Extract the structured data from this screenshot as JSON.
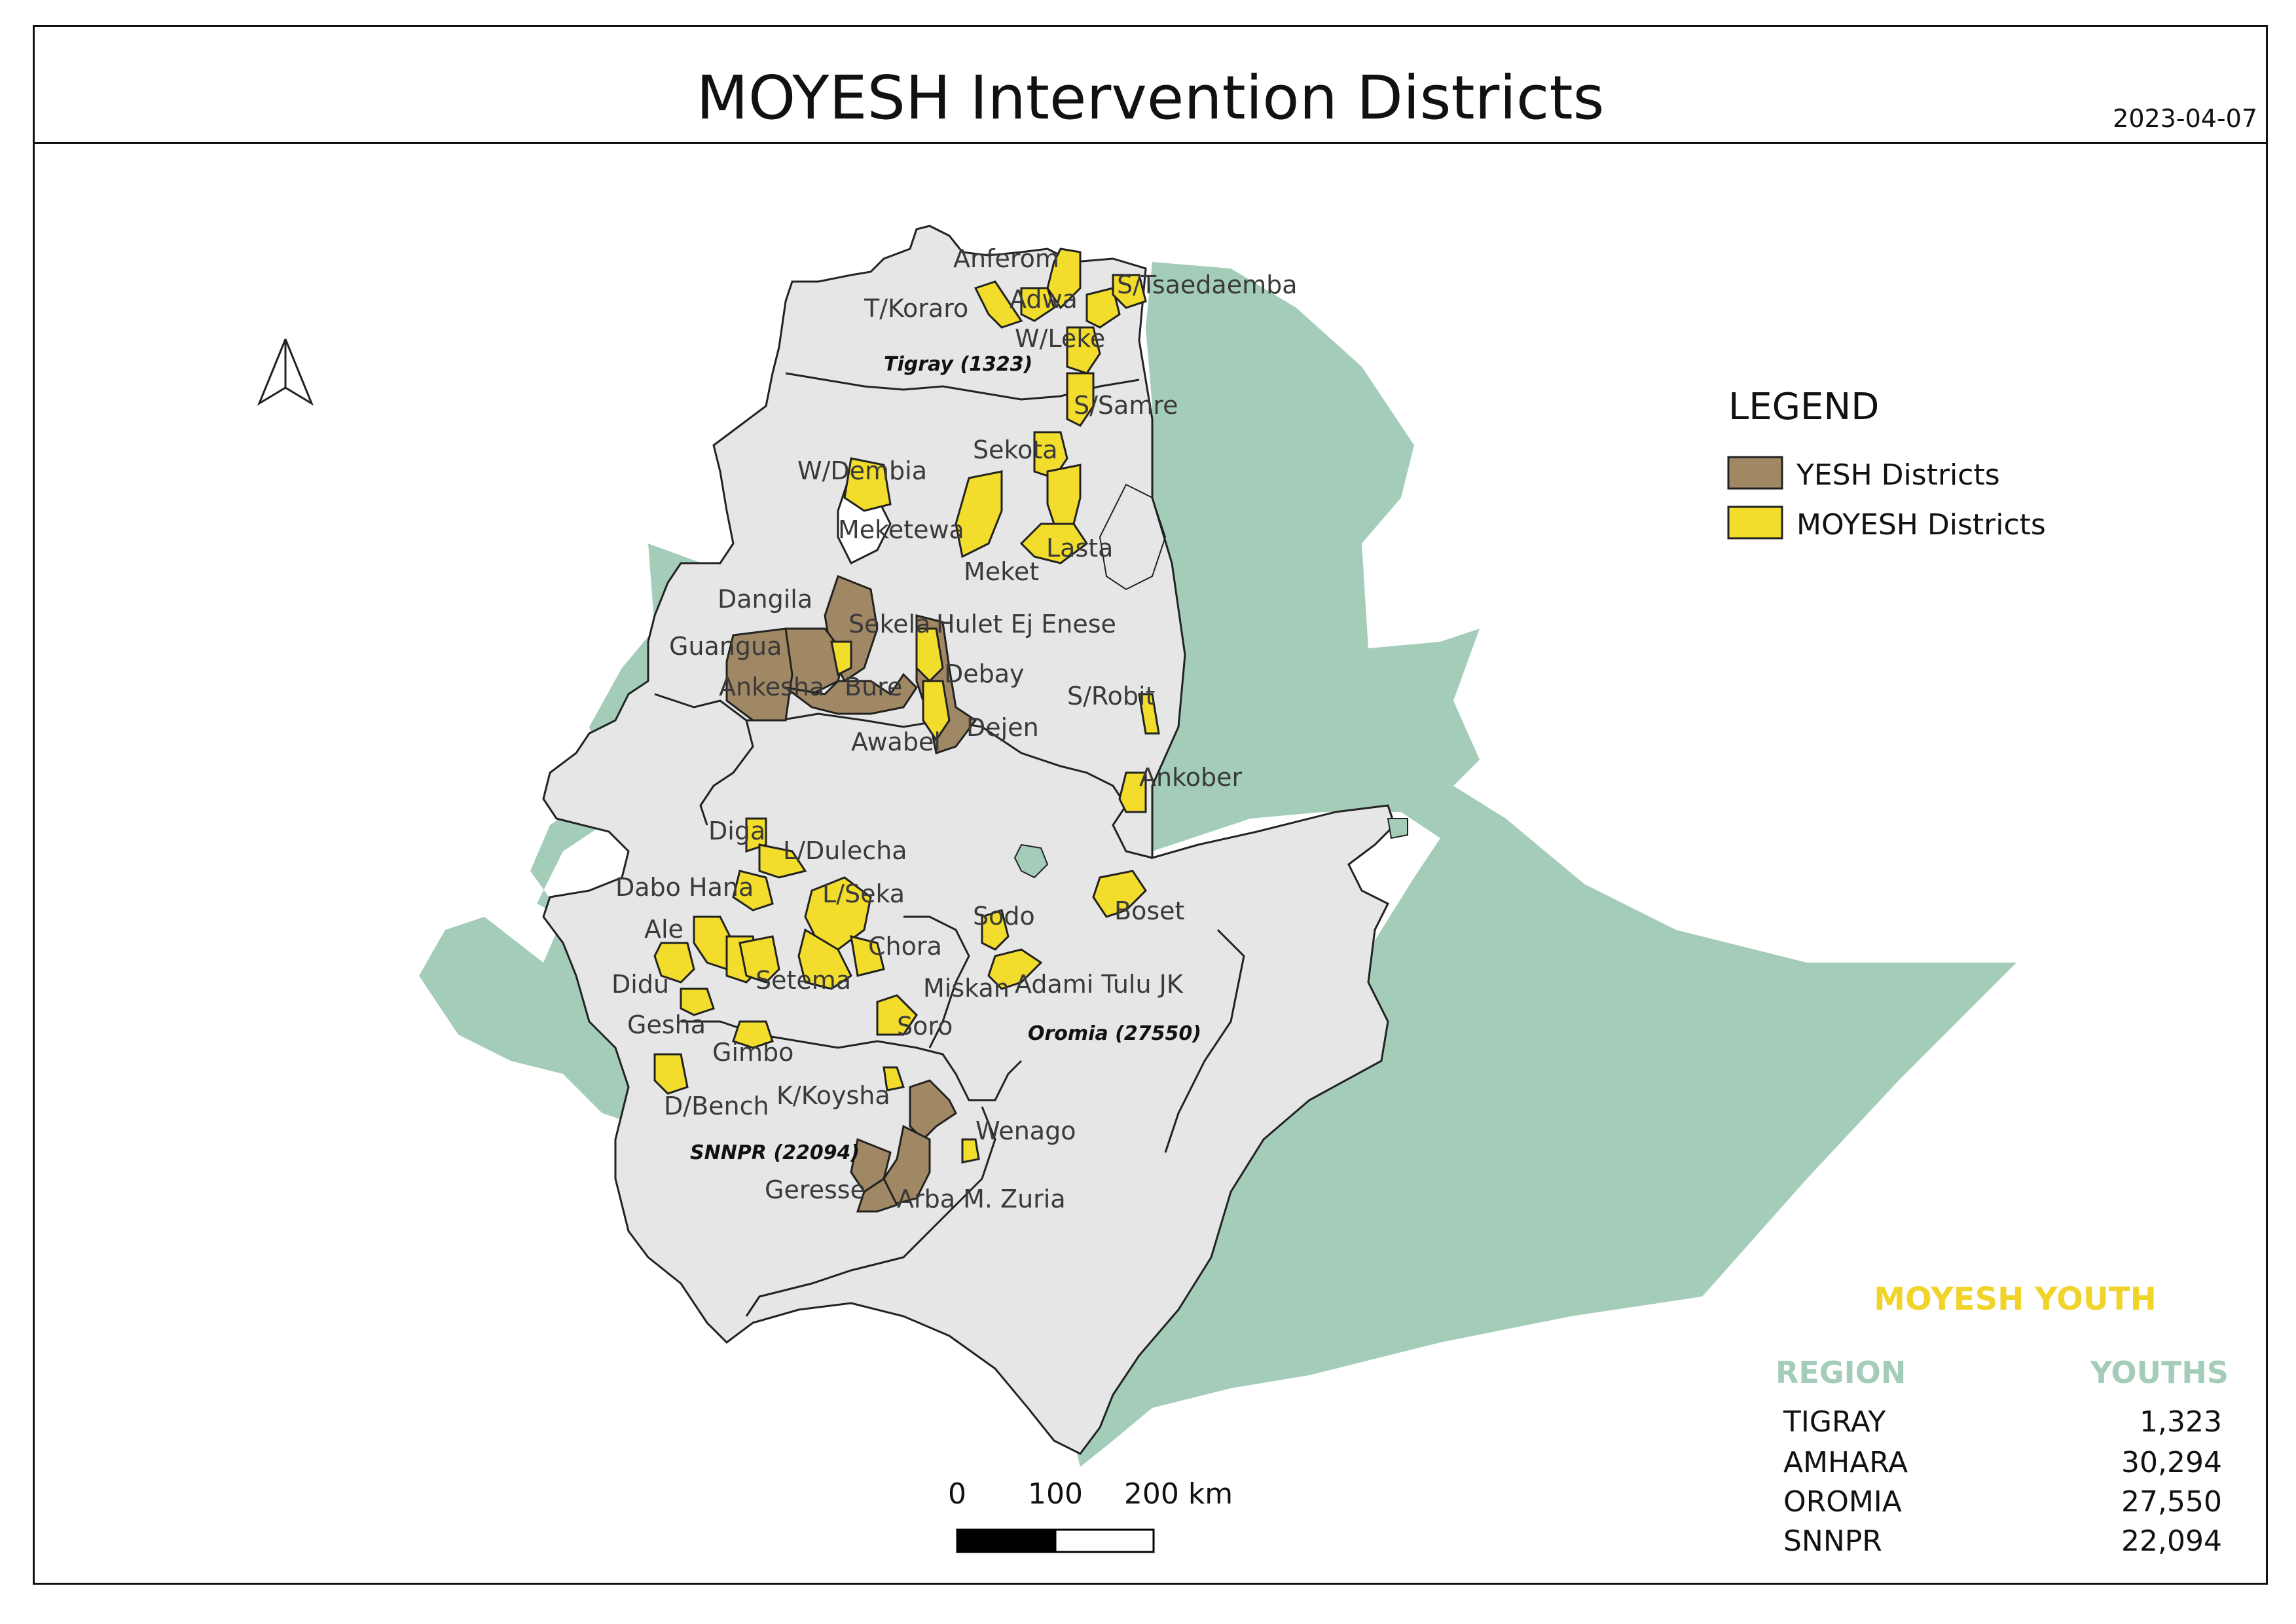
{
  "map": {
    "title": "MOYESH Intervention Districts",
    "date": "2023-04-07",
    "colors": {
      "background_region": "#a4cdb9",
      "country_fill": "#e6e6e6",
      "moyesh_fill": "#f2dc2c",
      "yesh_fill": "#a08864",
      "border": "#222222"
    },
    "north_arrow_icon": "north-arrow-icon",
    "legend": {
      "title": "LEGEND",
      "items": [
        {
          "label": "YESH Districts",
          "color": "#a08864"
        },
        {
          "label": "MOYESH Districts",
          "color": "#f2dc2c"
        }
      ]
    },
    "scale_bar": {
      "labels": [
        "0",
        "100",
        "200 km"
      ]
    },
    "region_labels": [
      "Tigray (1323)",
      "Oromia (27550)",
      "SNNPR (22094)"
    ],
    "district_labels": [
      "Anferom",
      "T/Koraro",
      "Adwa",
      "S/Tsaedaemba",
      "W/Leke",
      "S/Samre",
      "Sekota",
      "W/Dembia",
      "Meketewa",
      "Lasta",
      "Meket",
      "Dangila",
      "Sekela",
      "Hulet Ej Enese",
      "Guangua",
      "Debay",
      "Ankesha",
      "Bure",
      "S/Robit",
      "Dejen",
      "Awabel",
      "Ankober",
      "Diga",
      "L/Dulecha",
      "Dabo Hana",
      "L/Seka",
      "Sodo",
      "Boset",
      "Ale",
      "Chora",
      "Didu",
      "Setema",
      "Miskan",
      "Adami Tulu JK",
      "Gesha",
      "Soro",
      "Gimbo",
      "K/Koysha",
      "D/Bench",
      "Wenago",
      "Geresse",
      "Arba M. Zuria"
    ]
  },
  "summary_table": {
    "title": "MOYESH YOUTH",
    "title_color": "#f0d42a",
    "header_color": "#a4cdb9",
    "headers": [
      "REGION",
      "YOUTHS"
    ],
    "rows": [
      {
        "region": "TIGRAY",
        "youths": "1,323"
      },
      {
        "region": "AMHARA",
        "youths": "30,294"
      },
      {
        "region": "OROMIA",
        "youths": "27,550"
      },
      {
        "region": "SNNPR",
        "youths": "22,094"
      }
    ]
  }
}
